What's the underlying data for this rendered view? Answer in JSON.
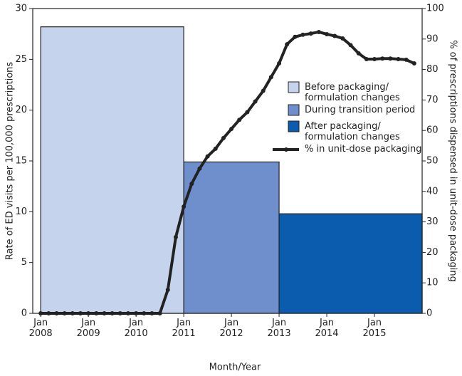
{
  "chart_data": {
    "type": "bar-line",
    "xlabel": "Month/Year",
    "ylabel": "Rate of ED visits per 100,000 prescriptions",
    "y2label": "% of prescriptions dispensed in unit-dose packaging",
    "xlim": [
      "2007-11",
      "2016-01"
    ],
    "xticks": [
      {
        "value": "2008-01",
        "label": "Jan\n2008"
      },
      {
        "value": "2009-01",
        "label": "Jan\n2009"
      },
      {
        "value": "2010-01",
        "label": "Jan\n2010"
      },
      {
        "value": "2011-01",
        "label": "Jan\n2011"
      },
      {
        "value": "2012-01",
        "label": "Jan\n2012"
      },
      {
        "value": "2013-01",
        "label": "Jan\n2013"
      },
      {
        "value": "2014-01",
        "label": "Jan\n2014"
      },
      {
        "value": "2015-01",
        "label": "Jan\n2015"
      }
    ],
    "ylim": [
      0,
      30
    ],
    "yticks": [
      0,
      5,
      10,
      15,
      20,
      25,
      30
    ],
    "y2lim": [
      0,
      100
    ],
    "y2ticks": [
      0,
      10,
      20,
      30,
      40,
      50,
      60,
      70,
      80,
      90,
      100
    ],
    "bars": [
      {
        "name": "Before packaging/\nformulation changes",
        "color": "#c5d3ec",
        "start": "2008-01",
        "end": "2011-01",
        "value": 28.2
      },
      {
        "name": "During transition period",
        "color": "#6f8fcc",
        "start": "2011-01",
        "end": "2013-01",
        "value": 14.9
      },
      {
        "name": "After packaging/\nformulation changes",
        "color": "#0b5bae",
        "start": "2013-01",
        "end": "2016-01",
        "value": 9.8
      }
    ],
    "line": {
      "name": "% in unit-dose packaging",
      "color": "#222222",
      "axis": "y2",
      "x": [
        "2008-01",
        "2008-03",
        "2008-05",
        "2008-07",
        "2008-09",
        "2008-11",
        "2009-01",
        "2009-03",
        "2009-05",
        "2009-07",
        "2009-09",
        "2009-11",
        "2010-01",
        "2010-03",
        "2010-05",
        "2010-07",
        "2010-09",
        "2010-11",
        "2011-01",
        "2011-03",
        "2011-05",
        "2011-07",
        "2011-09",
        "2011-11",
        "2012-01",
        "2012-03",
        "2012-05",
        "2012-07",
        "2012-09",
        "2012-11",
        "2013-01",
        "2013-03",
        "2013-05",
        "2013-07",
        "2013-09",
        "2013-11",
        "2014-01",
        "2014-03",
        "2014-05",
        "2014-07",
        "2014-09",
        "2014-11",
        "2015-01",
        "2015-03",
        "2015-05",
        "2015-07",
        "2015-09",
        "2015-11"
      ],
      "values": [
        0,
        0,
        0,
        0,
        0,
        0,
        0,
        0,
        0,
        0,
        0,
        0,
        0,
        0,
        0,
        0,
        7.7,
        25,
        35,
        42.5,
        47.5,
        51.5,
        54,
        57.5,
        60.5,
        63.5,
        66,
        69.5,
        73,
        77.5,
        82,
        88.3,
        90.7,
        91.4,
        91.8,
        92.3,
        91.6,
        91,
        90.2,
        88,
        85.3,
        83.4,
        83.4,
        83.6,
        83.6,
        83.4,
        83.2,
        82
      ]
    }
  }
}
